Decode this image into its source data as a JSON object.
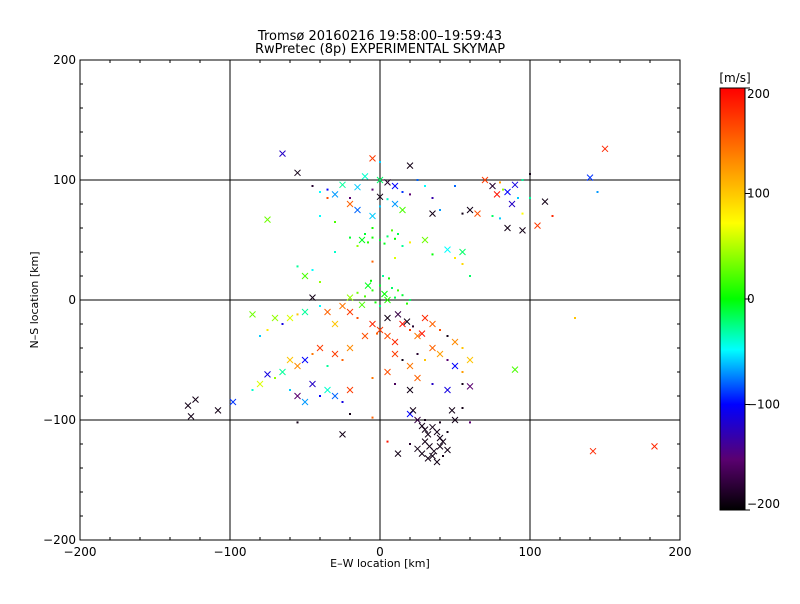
{
  "chart_data": {
    "type": "scatter",
    "title": "Tromsø 20160216 19:58:00–19:59:43",
    "subtitle": "RwPretec (8p) EXPERIMENTAL SKYMAP",
    "xlabel": "E–W location [km]",
    "ylabel": "N–S location [km]",
    "xlim": [
      -200,
      200
    ],
    "ylim": [
      -200,
      200
    ],
    "xticks": [
      -200,
      -100,
      0,
      100,
      200
    ],
    "yticks": [
      -200,
      -100,
      0,
      100,
      200
    ],
    "x_tick_labels": [
      "−200",
      "−100",
      "0",
      "100",
      "200"
    ],
    "y_tick_labels": [
      "−200",
      "−100",
      "0",
      "100",
      "200"
    ],
    "grid_lines": [
      -100,
      0,
      100
    ],
    "colorbar": {
      "label": "[m/s]",
      "range": [
        -200,
        200
      ],
      "ticks": [
        -200,
        -100,
        0,
        100,
        200
      ],
      "tick_labels": [
        "−200",
        "−100",
        "0",
        "100",
        "200"
      ],
      "colors": [
        "#000000",
        "#6a006a",
        "#0000ff",
        "#00ffff",
        "#00ff00",
        "#ffff00",
        "#ff8000",
        "#ff0000"
      ]
    },
    "markers": {
      "small": "dot",
      "large": "x"
    },
    "points_note": "",
    "points": [
      [
        -65,
        122,
        -120,
        1
      ],
      [
        -5,
        118,
        170,
        1
      ],
      [
        0,
        115,
        -60,
        0
      ],
      [
        20,
        112,
        -190,
        1
      ],
      [
        150,
        126,
        180,
        1
      ],
      [
        -55,
        106,
        -190,
        1
      ],
      [
        -10,
        103,
        -40,
        1
      ],
      [
        0,
        100,
        -20,
        1
      ],
      [
        5,
        98,
        -180,
        1
      ],
      [
        -25,
        96,
        -30,
        1
      ],
      [
        -15,
        94,
        -60,
        1
      ],
      [
        10,
        95,
        -100,
        1
      ],
      [
        -5,
        92,
        -150,
        0
      ],
      [
        15,
        90,
        -90,
        0
      ],
      [
        -30,
        88,
        -70,
        1
      ],
      [
        -20,
        85,
        -150,
        0
      ],
      [
        0,
        86,
        -190,
        1
      ],
      [
        5,
        84,
        -40,
        0
      ],
      [
        25,
        100,
        -80,
        0
      ],
      [
        30,
        95,
        -50,
        0
      ],
      [
        -35,
        92,
        -100,
        0
      ],
      [
        -40,
        90,
        -50,
        0
      ],
      [
        -45,
        95,
        -180,
        0
      ],
      [
        20,
        88,
        -150,
        0
      ],
      [
        35,
        85,
        -130,
        0
      ],
      [
        -20,
        80,
        150,
        1
      ],
      [
        -15,
        75,
        -80,
        1
      ],
      [
        0,
        78,
        -60,
        0
      ],
      [
        10,
        80,
        -70,
        1
      ],
      [
        15,
        75,
        20,
        1
      ],
      [
        -5,
        70,
        -60,
        1
      ],
      [
        35,
        72,
        -190,
        1
      ],
      [
        40,
        75,
        -70,
        0
      ],
      [
        70,
        100,
        170,
        1
      ],
      [
        75,
        95,
        -180,
        1
      ],
      [
        80,
        98,
        120,
        0
      ],
      [
        85,
        90,
        -100,
        1
      ],
      [
        90,
        96,
        -110,
        1
      ],
      [
        95,
        100,
        -30,
        0
      ],
      [
        100,
        105,
        -190,
        0
      ],
      [
        78,
        88,
        190,
        1
      ],
      [
        82,
        92,
        40,
        0
      ],
      [
        88,
        80,
        -120,
        1
      ],
      [
        92,
        85,
        -60,
        0
      ],
      [
        100,
        85,
        -30,
        0
      ],
      [
        60,
        75,
        -190,
        1
      ],
      [
        65,
        72,
        160,
        1
      ],
      [
        75,
        70,
        -20,
        0
      ],
      [
        80,
        68,
        -60,
        0
      ],
      [
        95,
        72,
        70,
        0
      ],
      [
        85,
        60,
        -190,
        1
      ],
      [
        95,
        58,
        -190,
        1
      ],
      [
        105,
        62,
        170,
        1
      ],
      [
        110,
        82,
        -190,
        1
      ],
      [
        115,
        70,
        180,
        0
      ],
      [
        140,
        102,
        -90,
        1
      ],
      [
        145,
        90,
        -70,
        0
      ],
      [
        50,
        95,
        -80,
        0
      ],
      [
        55,
        72,
        -190,
        0
      ],
      [
        -75,
        67,
        30,
        1
      ],
      [
        -35,
        85,
        160,
        0
      ],
      [
        -40,
        70,
        -50,
        0
      ],
      [
        -30,
        65,
        20,
        0
      ],
      [
        -10,
        55,
        -10,
        0
      ],
      [
        -5,
        52,
        5,
        0
      ],
      [
        0,
        50,
        -10,
        0
      ],
      [
        5,
        53,
        -20,
        0
      ],
      [
        10,
        51,
        0,
        0
      ],
      [
        -8,
        48,
        10,
        0
      ],
      [
        3,
        47,
        -5,
        0
      ],
      [
        12,
        55,
        -15,
        0
      ],
      [
        -12,
        50,
        -5,
        1
      ],
      [
        8,
        58,
        20,
        0
      ],
      [
        -15,
        45,
        40,
        0
      ],
      [
        15,
        45,
        -30,
        0
      ],
      [
        -5,
        60,
        5,
        0
      ],
      [
        20,
        48,
        80,
        0
      ],
      [
        -20,
        52,
        -10,
        0
      ],
      [
        30,
        50,
        30,
        1
      ],
      [
        -30,
        40,
        -40,
        0
      ],
      [
        35,
        38,
        0,
        0
      ],
      [
        45,
        42,
        -50,
        1
      ],
      [
        50,
        35,
        80,
        0
      ],
      [
        55,
        40,
        -20,
        1
      ],
      [
        -55,
        28,
        -30,
        0
      ],
      [
        -50,
        20,
        20,
        1
      ],
      [
        -45,
        25,
        -50,
        0
      ],
      [
        -40,
        15,
        40,
        0
      ],
      [
        55,
        30,
        90,
        0
      ],
      [
        60,
        20,
        -20,
        0
      ],
      [
        -5,
        32,
        150,
        0
      ],
      [
        10,
        35,
        60,
        0
      ],
      [
        0,
        12,
        -10,
        0
      ],
      [
        -5,
        8,
        10,
        0
      ],
      [
        3,
        5,
        0,
        1
      ],
      [
        8,
        10,
        -20,
        0
      ],
      [
        -10,
        3,
        20,
        0
      ],
      [
        5,
        0,
        10,
        1
      ],
      [
        -3,
        -2,
        5,
        0
      ],
      [
        10,
        2,
        -15,
        0
      ],
      [
        -8,
        12,
        -5,
        1
      ],
      [
        12,
        8,
        15,
        0
      ],
      [
        0,
        -5,
        -25,
        0
      ],
      [
        -15,
        6,
        30,
        0
      ],
      [
        15,
        4,
        -10,
        0
      ],
      [
        -6,
        16,
        0,
        0
      ],
      [
        6,
        18,
        5,
        0
      ],
      [
        -20,
        2,
        40,
        1
      ],
      [
        20,
        0,
        -20,
        0
      ],
      [
        -12,
        -4,
        20,
        1
      ],
      [
        18,
        -3,
        10,
        0
      ],
      [
        2,
        20,
        -30,
        0
      ],
      [
        -45,
        2,
        -190,
        1
      ],
      [
        -40,
        -5,
        -50,
        0
      ],
      [
        -35,
        -10,
        150,
        1
      ],
      [
        -50,
        -10,
        -30,
        1
      ],
      [
        -55,
        -12,
        100,
        0
      ],
      [
        -60,
        -15,
        60,
        1
      ],
      [
        -65,
        -20,
        -110,
        0
      ],
      [
        -70,
        -15,
        40,
        1
      ],
      [
        -85,
        -12,
        30,
        1
      ],
      [
        -75,
        -25,
        80,
        0
      ],
      [
        -80,
        -30,
        -60,
        0
      ],
      [
        -25,
        -5,
        140,
        1
      ],
      [
        -20,
        -10,
        170,
        1
      ],
      [
        -15,
        -15,
        160,
        0
      ],
      [
        -30,
        -20,
        100,
        1
      ],
      [
        -5,
        -20,
        180,
        1
      ],
      [
        0,
        -25,
        170,
        1
      ],
      [
        5,
        -30,
        160,
        1
      ],
      [
        10,
        -35,
        180,
        1
      ],
      [
        -2,
        -28,
        150,
        0
      ],
      [
        15,
        -20,
        190,
        1
      ],
      [
        20,
        -25,
        170,
        0
      ],
      [
        25,
        -30,
        140,
        1
      ],
      [
        -10,
        -30,
        160,
        1
      ],
      [
        5,
        -15,
        -190,
        1
      ],
      [
        12,
        -12,
        -170,
        1
      ],
      [
        18,
        -18,
        -190,
        1
      ],
      [
        22,
        -22,
        -180,
        0
      ],
      [
        30,
        -15,
        180,
        1
      ],
      [
        35,
        -20,
        150,
        1
      ],
      [
        28,
        -28,
        190,
        1
      ],
      [
        40,
        -25,
        160,
        0
      ],
      [
        45,
        -30,
        -190,
        0
      ],
      [
        50,
        -35,
        130,
        1
      ],
      [
        55,
        -40,
        100,
        0
      ],
      [
        -40,
        -40,
        170,
        1
      ],
      [
        -45,
        -45,
        140,
        0
      ],
      [
        -50,
        -50,
        -100,
        1
      ],
      [
        -55,
        -55,
        130,
        1
      ],
      [
        -60,
        -50,
        100,
        1
      ],
      [
        -65,
        -60,
        -30,
        1
      ],
      [
        -70,
        -65,
        40,
        0
      ],
      [
        -75,
        -62,
        -110,
        1
      ],
      [
        -80,
        -70,
        60,
        1
      ],
      [
        -85,
        -75,
        -40,
        0
      ],
      [
        -30,
        -45,
        170,
        1
      ],
      [
        -25,
        -50,
        150,
        0
      ],
      [
        -20,
        -40,
        130,
        1
      ],
      [
        -35,
        -55,
        -30,
        0
      ],
      [
        -45,
        -70,
        -120,
        1
      ],
      [
        -60,
        -75,
        -60,
        0
      ],
      [
        -55,
        -80,
        -150,
        1
      ],
      [
        -35,
        -75,
        -40,
        1
      ],
      [
        -40,
        -80,
        -100,
        0
      ],
      [
        -50,
        -85,
        -70,
        1
      ],
      [
        10,
        -45,
        170,
        1
      ],
      [
        15,
        -50,
        -190,
        0
      ],
      [
        20,
        -55,
        140,
        1
      ],
      [
        25,
        -45,
        -180,
        0
      ],
      [
        30,
        -50,
        100,
        0
      ],
      [
        35,
        -40,
        150,
        1
      ],
      [
        40,
        -45,
        120,
        1
      ],
      [
        45,
        -50,
        -150,
        0
      ],
      [
        50,
        -55,
        -100,
        1
      ],
      [
        55,
        -60,
        120,
        0
      ],
      [
        60,
        -50,
        100,
        1
      ],
      [
        5,
        -60,
        160,
        1
      ],
      [
        -5,
        -65,
        140,
        0
      ],
      [
        10,
        -70,
        -160,
        0
      ],
      [
        20,
        -75,
        -190,
        1
      ],
      [
        25,
        -65,
        150,
        1
      ],
      [
        35,
        -70,
        -120,
        0
      ],
      [
        45,
        -75,
        -110,
        1
      ],
      [
        55,
        -70,
        -190,
        0
      ],
      [
        60,
        -72,
        -150,
        1
      ],
      [
        90,
        -58,
        20,
        1
      ],
      [
        130,
        -15,
        100,
        0
      ],
      [
        -20,
        -75,
        170,
        1
      ],
      [
        -30,
        -80,
        -80,
        1
      ],
      [
        -25,
        -85,
        -110,
        0
      ],
      [
        -128,
        -88,
        -190,
        1
      ],
      [
        -123,
        -83,
        -190,
        1
      ],
      [
        -126,
        -97,
        -190,
        1
      ],
      [
        -108,
        -92,
        -190,
        1
      ],
      [
        -98,
        -85,
        -90,
        1
      ],
      [
        -55,
        -102,
        -190,
        0
      ],
      [
        -25,
        -112,
        -190,
        1
      ],
      [
        -20,
        -95,
        -190,
        0
      ],
      [
        -5,
        -98,
        150,
        0
      ],
      [
        5,
        -118,
        190,
        0
      ],
      [
        20,
        -95,
        -100,
        1
      ],
      [
        22,
        -92,
        -190,
        1
      ],
      [
        25,
        -100,
        -170,
        1
      ],
      [
        28,
        -105,
        -190,
        1
      ],
      [
        30,
        -108,
        -190,
        1
      ],
      [
        32,
        -112,
        -190,
        1
      ],
      [
        35,
        -106,
        -190,
        1
      ],
      [
        38,
        -110,
        -190,
        1
      ],
      [
        40,
        -115,
        -190,
        1
      ],
      [
        30,
        -118,
        -190,
        1
      ],
      [
        33,
        -122,
        -190,
        1
      ],
      [
        36,
        -126,
        -190,
        1
      ],
      [
        40,
        -122,
        -190,
        1
      ],
      [
        42,
        -118,
        -190,
        1
      ],
      [
        45,
        -125,
        -190,
        1
      ],
      [
        28,
        -128,
        -190,
        1
      ],
      [
        32,
        -132,
        -190,
        1
      ],
      [
        38,
        -135,
        -190,
        1
      ],
      [
        35,
        -130,
        -190,
        1
      ],
      [
        25,
        -124,
        -190,
        1
      ],
      [
        20,
        -120,
        -180,
        0
      ],
      [
        42,
        -130,
        -190,
        0
      ],
      [
        30,
        -100,
        -190,
        0
      ],
      [
        45,
        -110,
        -190,
        0
      ],
      [
        50,
        -100,
        -190,
        1
      ],
      [
        48,
        -92,
        -190,
        1
      ],
      [
        55,
        -90,
        -190,
        0
      ],
      [
        12,
        -128,
        -190,
        1
      ],
      [
        60,
        -102,
        -150,
        0
      ],
      [
        40,
        -102,
        -190,
        0
      ],
      [
        142,
        -126,
        180,
        1
      ],
      [
        183,
        -122,
        180,
        1
      ]
    ]
  }
}
